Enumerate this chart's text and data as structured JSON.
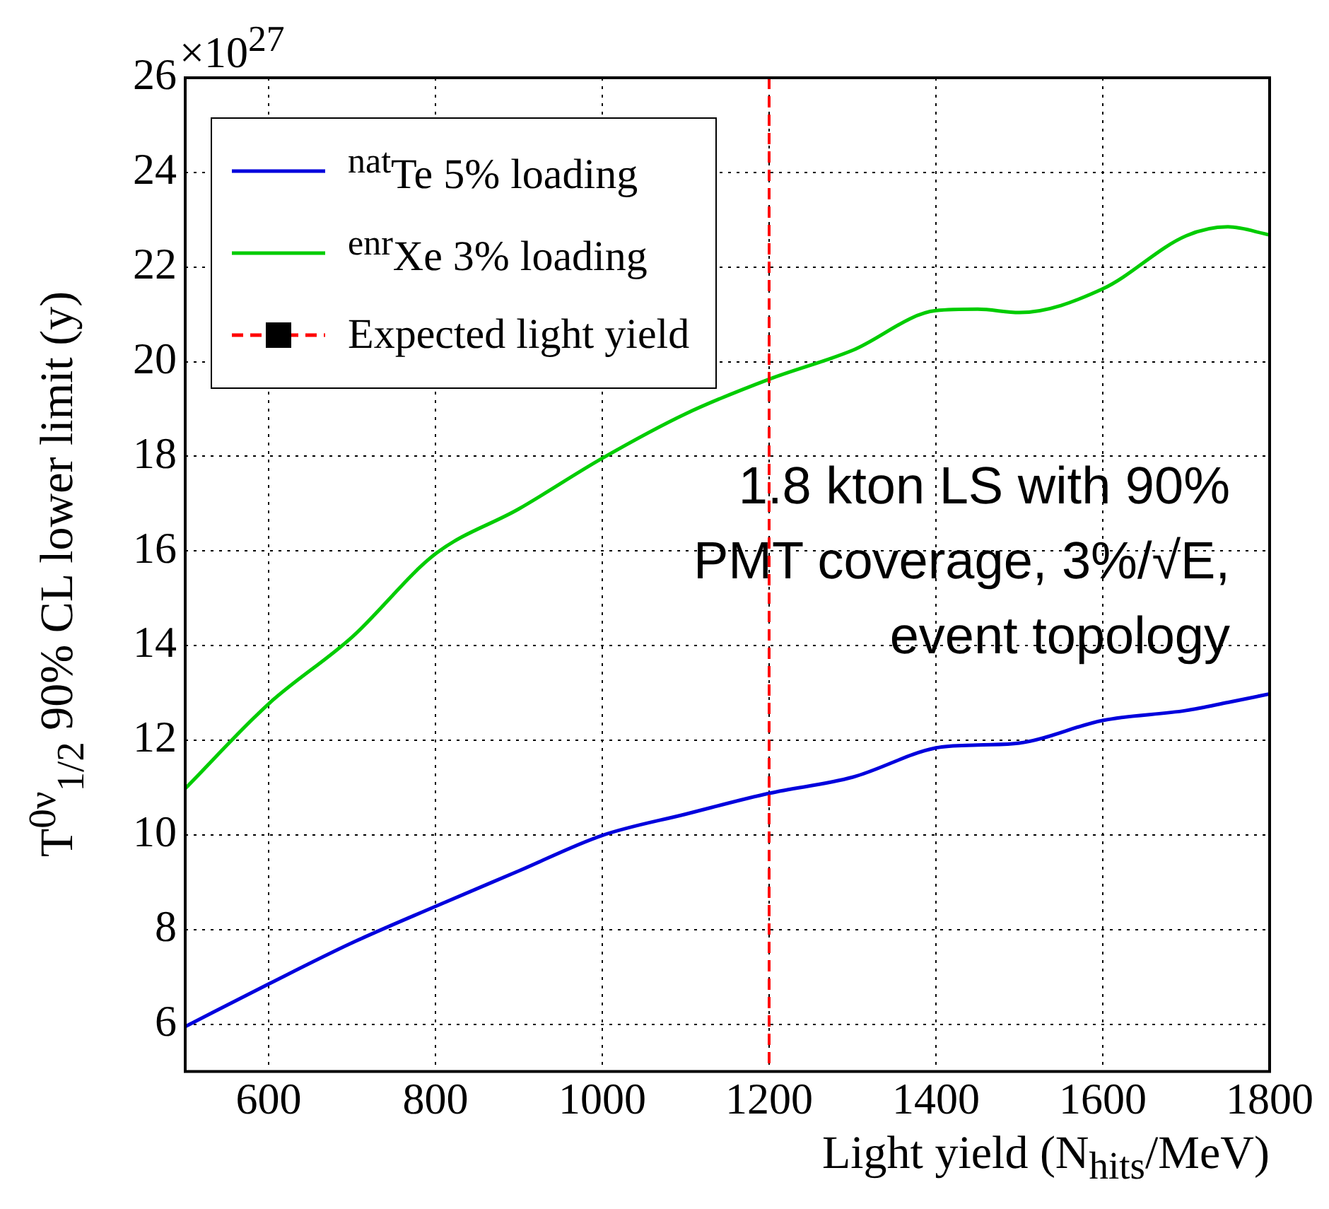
{
  "chart_data": {
    "type": "line",
    "xlabel": "Light yield (N$_{hits}$/MeV)",
    "ylabel": "T$^{0ν}$$_{1/2}$ 90% CL lower limit (y)",
    "x": [
      500,
      600,
      700,
      800,
      900,
      1000,
      1100,
      1200,
      1300,
      1400,
      1450,
      1500,
      1600,
      1700,
      1750,
      1800
    ],
    "series": [
      {
        "name": "$^{nat}$Te 5% loading",
        "color": "#0000dd",
        "values": [
          5.95,
          6.85,
          7.72,
          8.49,
          9.24,
          9.99,
          10.44,
          10.88,
          11.22,
          11.84,
          11.9,
          11.94,
          12.42,
          12.63,
          12.8,
          12.98
        ]
      },
      {
        "name": "$^{enr}$Xe 3% loading",
        "color": "#00cc00",
        "values": [
          10.98,
          12.77,
          14.18,
          15.94,
          16.89,
          17.96,
          18.9,
          19.63,
          20.24,
          21.08,
          21.11,
          21.04,
          21.54,
          22.66,
          22.85,
          22.68
        ]
      }
    ],
    "ref_lines": [
      {
        "axis": "x",
        "value": 1200,
        "label": "Expected light yield",
        "color": "#ff0000",
        "line_style": "dashed"
      }
    ],
    "annotations": [
      "×10$^{27}$",
      "1.8 kton LS with 90% PMT coverage, 3%/√E, event topology"
    ],
    "xlim": [
      500,
      1800
    ],
    "xticks": [
      600,
      800,
      1000,
      1200,
      1400,
      1600,
      1800
    ],
    "ylim": [
      5,
      26
    ],
    "yticks": [
      6,
      8,
      10,
      12,
      14,
      16,
      18,
      20,
      22,
      24,
      26
    ],
    "grid": true,
    "legend": "top left",
    "marker": "none",
    "line_style": "solid"
  }
}
